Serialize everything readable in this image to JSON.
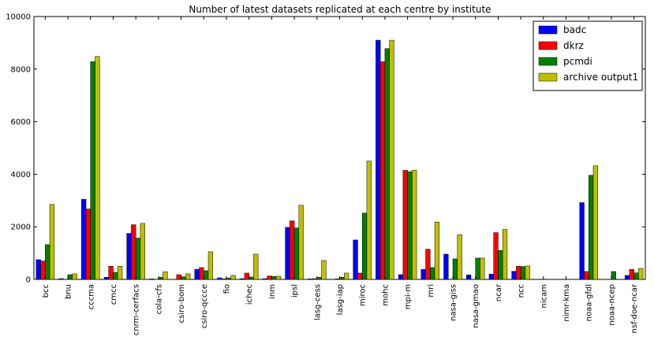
{
  "chart_data": {
    "type": "bar",
    "title": "Number of latest datasets replicated at each centre by institute",
    "xlabel": "",
    "ylabel": "",
    "ylim": [
      0,
      10000
    ],
    "yticks": [
      0,
      2000,
      4000,
      6000,
      8000,
      10000
    ],
    "grid": false,
    "legend_position": "top-right",
    "categories": [
      "bcc",
      "bnu",
      "cccma",
      "cmcc",
      "cnrm-cerfacs",
      "cola-cfs",
      "csiro-bom",
      "csiro-qccce",
      "fio",
      "ichec",
      "inm",
      "ipsl",
      "lasg-cess",
      "lasg-iap",
      "miroc",
      "mohc",
      "mpi-m",
      "mri",
      "nasa-giss",
      "nasa-gmao",
      "ncar",
      "ncc",
      "nicam",
      "nimr-kma",
      "noaa-gfdl",
      "noaa-ncep",
      "nsf-doe-ncar"
    ],
    "series": [
      {
        "name": "badc",
        "color": "#0000ff",
        "values": [
          750,
          30,
          3050,
          80,
          1750,
          20,
          0,
          380,
          60,
          30,
          30,
          1980,
          20,
          0,
          1500,
          9100,
          180,
          380,
          960,
          170,
          200,
          310,
          0,
          0,
          2920,
          0,
          150
        ]
      },
      {
        "name": "dkrz",
        "color": "#ff0000",
        "values": [
          700,
          0,
          2680,
          500,
          2080,
          0,
          180,
          450,
          20,
          240,
          130,
          2230,
          30,
          20,
          240,
          8280,
          4150,
          1150,
          0,
          0,
          1780,
          500,
          0,
          0,
          300,
          0,
          380
        ]
      },
      {
        "name": "pcmdi",
        "color": "#008000",
        "values": [
          1320,
          180,
          8280,
          270,
          1570,
          80,
          100,
          330,
          50,
          90,
          110,
          1960,
          80,
          80,
          2520,
          8780,
          4100,
          450,
          780,
          810,
          1100,
          490,
          0,
          0,
          3960,
          300,
          250
        ]
      },
      {
        "name": "archive output1",
        "color": "#bfbf00",
        "values": [
          2850,
          210,
          8480,
          500,
          2130,
          290,
          210,
          1050,
          150,
          960,
          120,
          2820,
          720,
          240,
          4500,
          9100,
          4150,
          2180,
          1700,
          810,
          1900,
          510,
          0,
          0,
          4320,
          0,
          420
        ]
      }
    ]
  }
}
